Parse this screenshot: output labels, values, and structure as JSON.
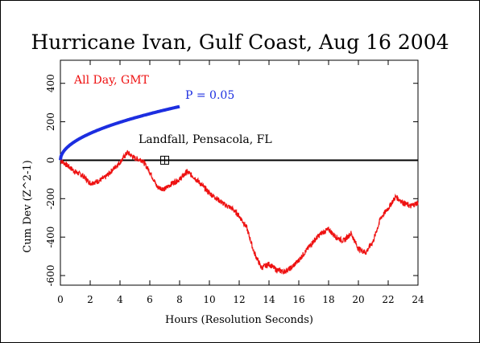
{
  "chart_data": {
    "type": "line",
    "title": "Hurricane Ivan, Gulf Coast, Aug 16 2004",
    "xlabel": "Hours (Resolution Seconds)",
    "ylabel": "Cum Dev (Z^2-1)",
    "xlim": [
      0,
      24
    ],
    "ylim": [
      -650,
      520
    ],
    "x_ticks": [
      "0",
      "2",
      "4",
      "6",
      "8",
      "10",
      "12",
      "14",
      "16",
      "18",
      "20",
      "22",
      "24"
    ],
    "y_ticks": [
      "-600",
      "-400",
      "-200",
      "0",
      "200",
      "400"
    ],
    "annotations": {
      "all_day": "All Day, GMT",
      "p_value": "P = 0.05",
      "landfall": "Landfall, Pensacola, FL"
    },
    "landfall_marker": {
      "x": 7.0,
      "y": 0
    },
    "colors": {
      "data": "#ee1111",
      "p_curve": "#1c2ee0",
      "axis": "#000000"
    },
    "series": [
      {
        "color": "#ee1111",
        "x": [
          0,
          0.5,
          1.0,
          1.5,
          2.0,
          2.5,
          3.0,
          3.5,
          4.0,
          4.5,
          5.0,
          5.5,
          6.0,
          6.5,
          7.0,
          7.5,
          8.0,
          8.5,
          9.0,
          9.5,
          10.0,
          10.5,
          11.0,
          11.5,
          12.0,
          12.5,
          13.0,
          13.5,
          14.0,
          14.5,
          15.0,
          15.5,
          16.0,
          16.5,
          17.0,
          17.5,
          18.0,
          18.5,
          19.0,
          19.5,
          20.0,
          20.5,
          21.0,
          21.5,
          22.0,
          22.5,
          23.0,
          23.5,
          24.0
        ],
        "values": [
          0,
          -30,
          -60,
          -80,
          -120,
          -110,
          -90,
          -50,
          -10,
          40,
          10,
          0,
          -60,
          -140,
          -150,
          -120,
          -100,
          -60,
          -90,
          -130,
          -170,
          -200,
          -230,
          -250,
          -290,
          -350,
          -480,
          -560,
          -540,
          -570,
          -580,
          -560,
          -520,
          -470,
          -420,
          -380,
          -360,
          -400,
          -420,
          -380,
          -460,
          -480,
          -420,
          -300,
          -250,
          -190,
          -220,
          -240,
          -220
        ]
      }
    ]
  }
}
